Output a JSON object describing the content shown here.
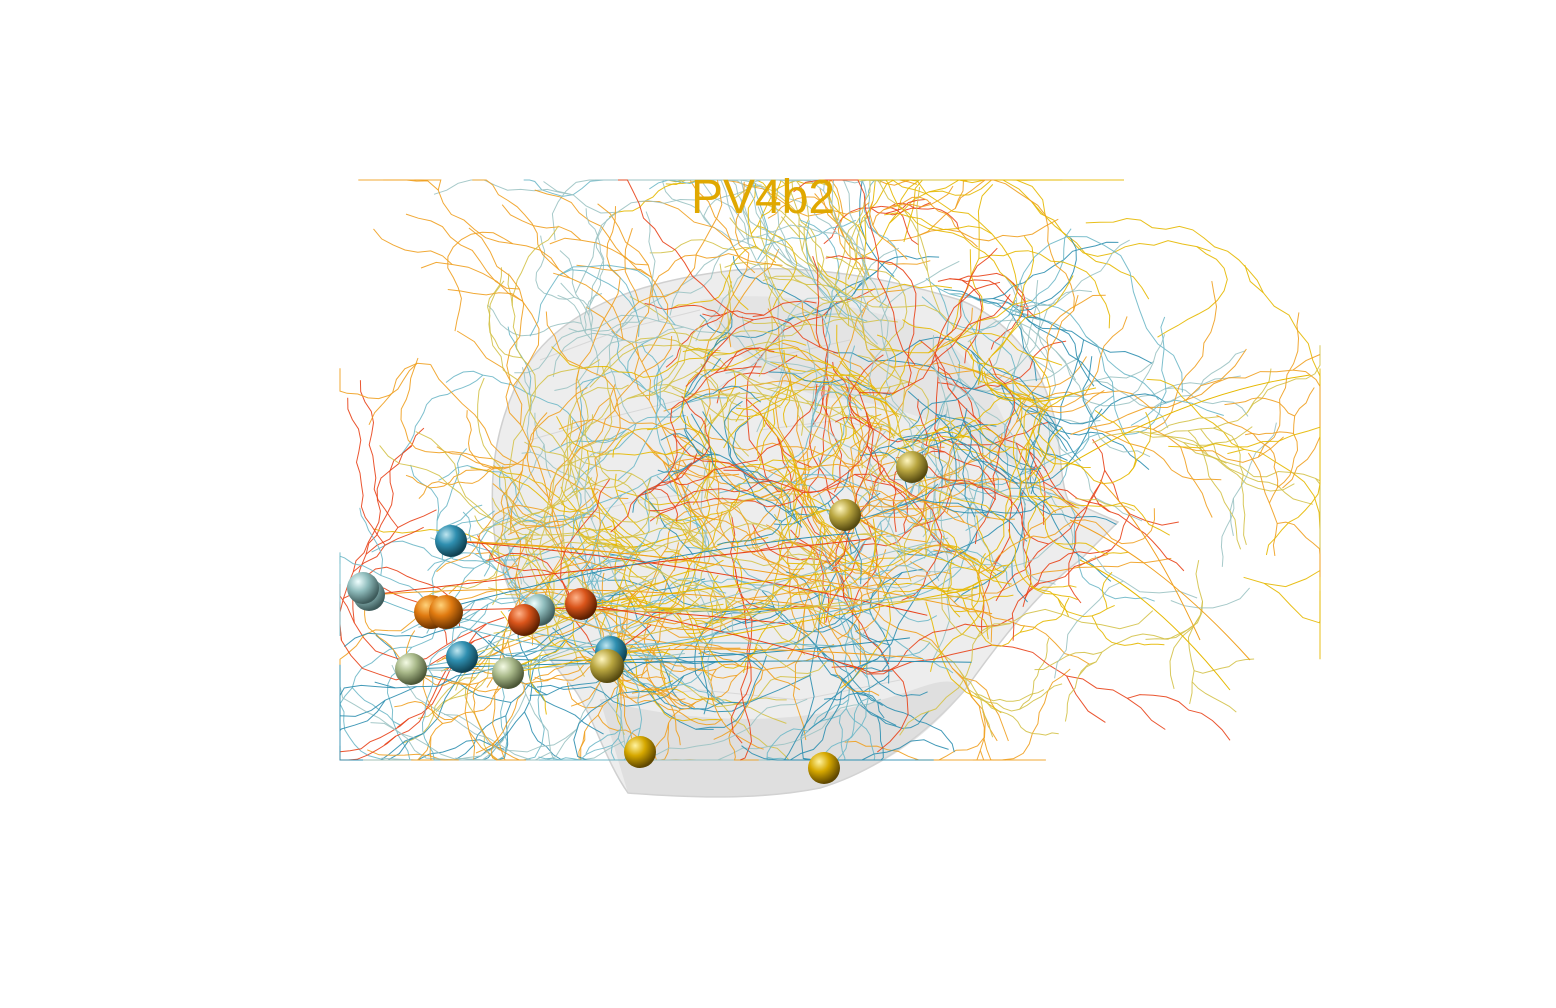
{
  "figure": {
    "title": "PV4b2",
    "title_color": "#e0a800",
    "background": "#ffffff",
    "neuropil_color": "#d9d9d9",
    "neuron_colors": [
      "#e6b800",
      "#f0a020",
      "#e8431a",
      "#6fb8c8",
      "#2f8fb0",
      "#9cc3c3",
      "#d4c24a"
    ],
    "soma_colors": {
      "teal": "#2f8fb0",
      "pale_teal": "#8fbcbc",
      "sage": "#a9b98a",
      "orange": "#e07a10",
      "red_orange": "#d9541a",
      "olive_gold": "#b9a640",
      "gold": "#d6a800"
    }
  }
}
